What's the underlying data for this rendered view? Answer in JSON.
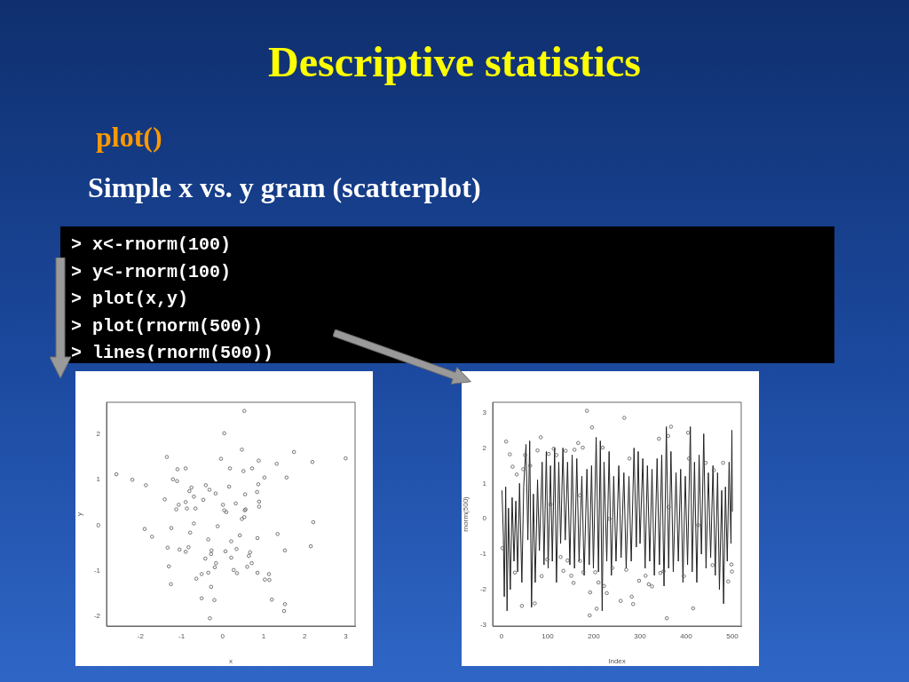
{
  "chart_data": [
    {
      "type": "other",
      "title": "Descriptive statistics",
      "subtitle": "plot()",
      "annotations": [
        "Simple x vs. y gram (scatterplot)",
        "> x<-rnorm(100)",
        "> y<-rnorm(100)",
        "> plot(x,y)",
        "> plot(rnorm(500))",
        "> lines(rnorm(500))"
      ]
    },
    {
      "type": "scatter",
      "xlabel": "x",
      "ylabel": "y",
      "color": "#555555",
      "marker": "circle",
      "grid": false,
      "legend": false,
      "xlim": [
        -2.83,
        3.23
      ],
      "ylim": [
        -2.21,
        2.7
      ],
      "xticks": [
        -2,
        -1,
        0,
        1,
        2,
        3
      ],
      "yticks": [
        -2,
        -1,
        0,
        1,
        2
      ],
      "x": [
        -2.59,
        -2.2,
        -1.87,
        -1.9,
        -1.72,
        -1.41,
        -1.36,
        -1.34,
        -1.31,
        -1.26,
        -1.25,
        -1.21,
        -1.13,
        -1.11,
        -1.1,
        -1.07,
        -1.05,
        -0.9,
        -0.9,
        -0.9,
        -0.87,
        -0.83,
        -0.81,
        -0.79,
        -0.76,
        -0.7,
        -0.7,
        -0.66,
        -0.64,
        -0.51,
        -0.51,
        -0.47,
        -0.42,
        -0.41,
        -0.35,
        -0.35,
        -0.32,
        -0.31,
        -0.28,
        -0.28,
        -0.27,
        -0.2,
        -0.19,
        -0.17,
        -0.16,
        -0.12,
        -0.04,
        0.01,
        0.04,
        0.04,
        0.09,
        0.07,
        0.16,
        0.18,
        0.21,
        0.21,
        0.27,
        0.32,
        0.34,
        0.35,
        0.42,
        0.47,
        0.47,
        0.51,
        0.53,
        0.53,
        0.54,
        0.55,
        0.56,
        0.6,
        0.64,
        0.67,
        0.71,
        0.72,
        0.84,
        0.85,
        0.85,
        0.87,
        0.88,
        0.89,
        0.89,
        1.02,
        1.03,
        1.13,
        1.14,
        1.2,
        1.32,
        1.34,
        1.52,
        1.52,
        1.5,
        1.56,
        1.74,
        2.15,
        2.19,
        2.21,
        3.0
      ],
      "values": [
        1.12,
        1.0,
        0.88,
        -0.08,
        -0.25,
        0.57,
        1.5,
        -0.49,
        -0.9,
        -1.29,
        -0.06,
        1.01,
        0.35,
        0.97,
        1.23,
        0.45,
        -0.53,
        1.25,
        0.51,
        -0.58,
        0.37,
        -0.48,
        0.75,
        -0.16,
        0.83,
        0.63,
        0.04,
        0.37,
        -1.17,
        -1.6,
        -1.07,
        0.56,
        -0.73,
        0.88,
        -1.04,
        -0.31,
        0.78,
        -2.04,
        -1.35,
        -0.63,
        -0.55,
        -1.64,
        -0.92,
        0.7,
        -0.83,
        -0.02,
        1.46,
        0.45,
        2.02,
        0.33,
        0.29,
        -0.57,
        0.85,
        1.25,
        -0.35,
        -0.71,
        -0.98,
        0.48,
        -0.52,
        -1.05,
        -0.22,
        0.14,
        1.66,
        1.19,
        2.51,
        0.18,
        0.33,
        0.68,
        0.35,
        -0.91,
        -0.67,
        -0.59,
        -0.83,
        1.25,
        0.73,
        -0.28,
        -1.04,
        0.9,
        1.42,
        0.52,
        0.41,
        1.05,
        -1.19,
        -1.07,
        -1.2,
        -1.63,
        1.35,
        -0.19,
        -0.55,
        -1.73,
        -1.88,
        1.05,
        1.61,
        -0.46,
        1.39,
        0.07,
        1.47
      ]
    },
    {
      "type": "scatter",
      "xlabel": "Index",
      "ylabel": "rnorm(500)",
      "grid": false,
      "legend": false,
      "xlim": [
        -19.2,
        519.2
      ],
      "ylim": [
        -3.03,
        3.29
      ],
      "xticks": [
        0,
        100,
        200,
        300,
        400,
        500
      ],
      "yticks": [
        -3,
        -2,
        -1,
        0,
        1,
        2,
        3
      ],
      "series": [
        {
          "type": "scatter",
          "color": "#555555",
          "marker": "circle",
          "x": [
            2,
            10,
            18,
            24,
            29,
            33,
            44,
            47,
            51,
            62,
            72,
            78,
            85,
            87,
            99,
            102,
            113,
            119,
            128,
            134,
            139,
            143,
            151,
            156,
            158,
            166,
            170,
            176,
            177,
            185,
            192,
            191,
            196,
            203,
            206,
            210,
            219,
            222,
            228,
            240,
            258,
            266,
            270,
            277,
            282,
            285,
            298,
            312,
            319,
            326,
            341,
            344,
            351,
            358,
            361,
            367,
            395,
            404,
            406,
            415,
            442,
            457,
            460,
            480,
            491,
            498,
            499,
            106,
            234,
            362,
            426,
            170
          ],
          "values": [
            -0.83,
            2.18,
            1.82,
            1.47,
            -1.52,
            1.25,
            -2.46,
            1.4,
            1.8,
            1.5,
            -2.39,
            1.93,
            2.3,
            -1.62,
            -1.15,
            1.83,
            1.98,
            1.8,
            -1.08,
            -1.47,
            1.92,
            -1.18,
            -1.61,
            -1.81,
            1.95,
            2.14,
            -1.19,
            2.01,
            -1.51,
            3.05,
            -2.08,
            -2.73,
            2.58,
            -1.51,
            -2.54,
            -1.8,
            2.01,
            -1.9,
            -2.1,
            -1.39,
            -2.32,
            2.85,
            -1.44,
            1.7,
            -2.2,
            -2.41,
            -1.75,
            -1.61,
            -1.85,
            -1.91,
            2.26,
            -1.53,
            -1.48,
            -2.81,
            2.34,
            2.6,
            -1.62,
            2.43,
            1.7,
            -2.53,
            1.58,
            -1.31,
            1.37,
            1.58,
            -1.77,
            -1.29,
            -1.49,
            0.41,
            0,
            0.33,
            -0.18,
            0.66
          ]
        },
        {
          "type": "line",
          "color": "#222222",
          "x": [
            1,
            4,
            6,
            9,
            12,
            15,
            19,
            23,
            27,
            31,
            35,
            39,
            44,
            48,
            53,
            57,
            61,
            65,
            69,
            73,
            78,
            82,
            88,
            92,
            97,
            101,
            106,
            110,
            115,
            119,
            124,
            128,
            133,
            138,
            143,
            148,
            153,
            158,
            163,
            168,
            174,
            179,
            185,
            190,
            195,
            199,
            205,
            210,
            214,
            218,
            222,
            228,
            233,
            238,
            243,
            248,
            254,
            259,
            265,
            270,
            276,
            281,
            287,
            292,
            296,
            300,
            306,
            311,
            316,
            321,
            326,
            331,
            337,
            342,
            347,
            352,
            357,
            362,
            367,
            372,
            378,
            383,
            388,
            393,
            398,
            403,
            409,
            413,
            418,
            423,
            428,
            433,
            438,
            443,
            448,
            453,
            458,
            463,
            468,
            472,
            477,
            481,
            485,
            489,
            493,
            497,
            499,
            500
          ],
          "values": [
            0.8,
            -0.5,
            -2.2,
            0.9,
            -2.6,
            0.3,
            -2.0,
            0.6,
            -1.2,
            0.5,
            -1.5,
            1.0,
            -1.8,
            0.9,
            2.1,
            -0.6,
            2.2,
            -2.5,
            0.7,
            -1.8,
            1.1,
            -0.9,
            1.6,
            -1.3,
            1.9,
            -1.4,
            1.5,
            -1.2,
            2.0,
            -1.8,
            1.6,
            -0.7,
            2.0,
            -0.6,
            1.6,
            -1.3,
            1.8,
            -1.4,
            1.7,
            -1.2,
            1.2,
            -1.6,
            1.4,
            -1.3,
            1.5,
            -1.4,
            2.3,
            -1.5,
            2.2,
            -2.6,
            1.6,
            -1.2,
            1.9,
            -1.6,
            1.2,
            -1.2,
            1.5,
            -1.1,
            1.3,
            -1.4,
            1.2,
            -1.2,
            2.0,
            -0.8,
            1.9,
            -0.7,
            1.7,
            -1.4,
            1.5,
            -1.2,
            1.4,
            -1.6,
            1.7,
            -1.3,
            1.8,
            -1.9,
            2.6,
            -1.4,
            1.9,
            -1.5,
            1.3,
            -1.2,
            1.4,
            -1.8,
            1.2,
            -1.3,
            2.6,
            -1.5,
            1.6,
            -1.8,
            1.8,
            -1.0,
            2.4,
            -1.4,
            1.3,
            -1.1,
            1.5,
            -1.6,
            1.3,
            -2.0,
            0.8,
            -2.4,
            0.9,
            -1.2,
            1.6,
            -0.7,
            2.5,
            0.2
          ]
        }
      ]
    }
  ]
}
